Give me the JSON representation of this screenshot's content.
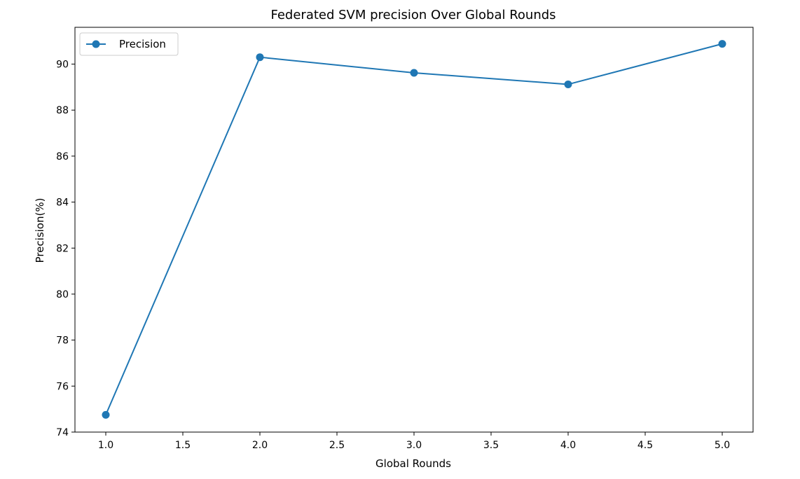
{
  "chart_data": {
    "type": "line",
    "title": "Federated SVM precision Over Global Rounds",
    "xlabel": "Global Rounds",
    "ylabel": "Precision(%)",
    "xlim": [
      0.8,
      5.2
    ],
    "ylim": [
      74.0,
      91.6
    ],
    "xticks": [
      1.0,
      1.5,
      2.0,
      2.5,
      3.0,
      3.5,
      4.0,
      4.5,
      5.0
    ],
    "xtick_labels": [
      "1.0",
      "1.5",
      "2.0",
      "2.5",
      "3.0",
      "3.5",
      "4.0",
      "4.5",
      "5.0"
    ],
    "yticks": [
      74,
      76,
      78,
      80,
      82,
      84,
      86,
      88,
      90
    ],
    "ytick_labels": [
      "74",
      "76",
      "78",
      "80",
      "82",
      "84",
      "86",
      "88",
      "90"
    ],
    "grid": false,
    "legend_position": "top-left",
    "series": [
      {
        "name": "Precision",
        "color": "#1f77b4",
        "marker": "circle",
        "x": [
          1,
          2,
          3,
          4,
          5
        ],
        "y": [
          74.75,
          90.3,
          89.62,
          89.12,
          90.88
        ]
      }
    ]
  }
}
